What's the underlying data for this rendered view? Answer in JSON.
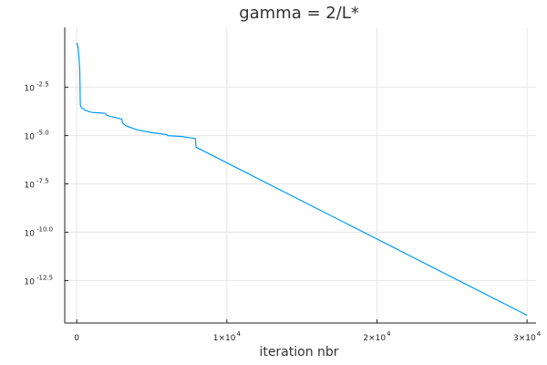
{
  "chart_data": {
    "type": "line",
    "title": "gamma = 2/L*",
    "xlabel": "iteration nbr",
    "ylabel": "",
    "xlim": [
      -800,
      30600
    ],
    "ylim": [
      -14.7,
      0.6
    ],
    "yscale": "log10",
    "grid": true,
    "x_ticks": [
      {
        "value": 0,
        "label_base": "0",
        "label_exp": ""
      },
      {
        "value": 10000,
        "label_base": "1×10",
        "label_exp": "4"
      },
      {
        "value": 20000,
        "label_base": "2×10",
        "label_exp": "4"
      },
      {
        "value": 30000,
        "label_base": "3×10",
        "label_exp": "4"
      }
    ],
    "y_ticks": [
      {
        "value": -2.5,
        "label_base": "10",
        "label_exp": "-2.5"
      },
      {
        "value": -5.0,
        "label_base": "10",
        "label_exp": "-5.0"
      },
      {
        "value": -7.5,
        "label_base": "10",
        "label_exp": "-7.5"
      },
      {
        "value": -10.0,
        "label_base": "10",
        "label_exp": "-10.0"
      },
      {
        "value": -12.5,
        "label_base": "10",
        "label_exp": "-12.5"
      }
    ],
    "series": [
      {
        "color": "#009af9",
        "x": [
          0,
          80,
          150,
          200,
          240,
          300,
          600,
          1000,
          1500,
          1900,
          2000,
          2200,
          3000,
          3050,
          3300,
          4000,
          5000,
          6000,
          6050,
          7000,
          7900,
          7950,
          30000
        ],
        "y_log10": [
          -0.2,
          -0.4,
          -0.9,
          -1.6,
          -3.4,
          -3.55,
          -3.7,
          -3.8,
          -3.82,
          -3.85,
          -3.95,
          -4.0,
          -4.15,
          -4.35,
          -4.5,
          -4.7,
          -4.85,
          -4.95,
          -5.0,
          -5.05,
          -5.15,
          -5.6,
          -14.3
        ]
      }
    ]
  }
}
